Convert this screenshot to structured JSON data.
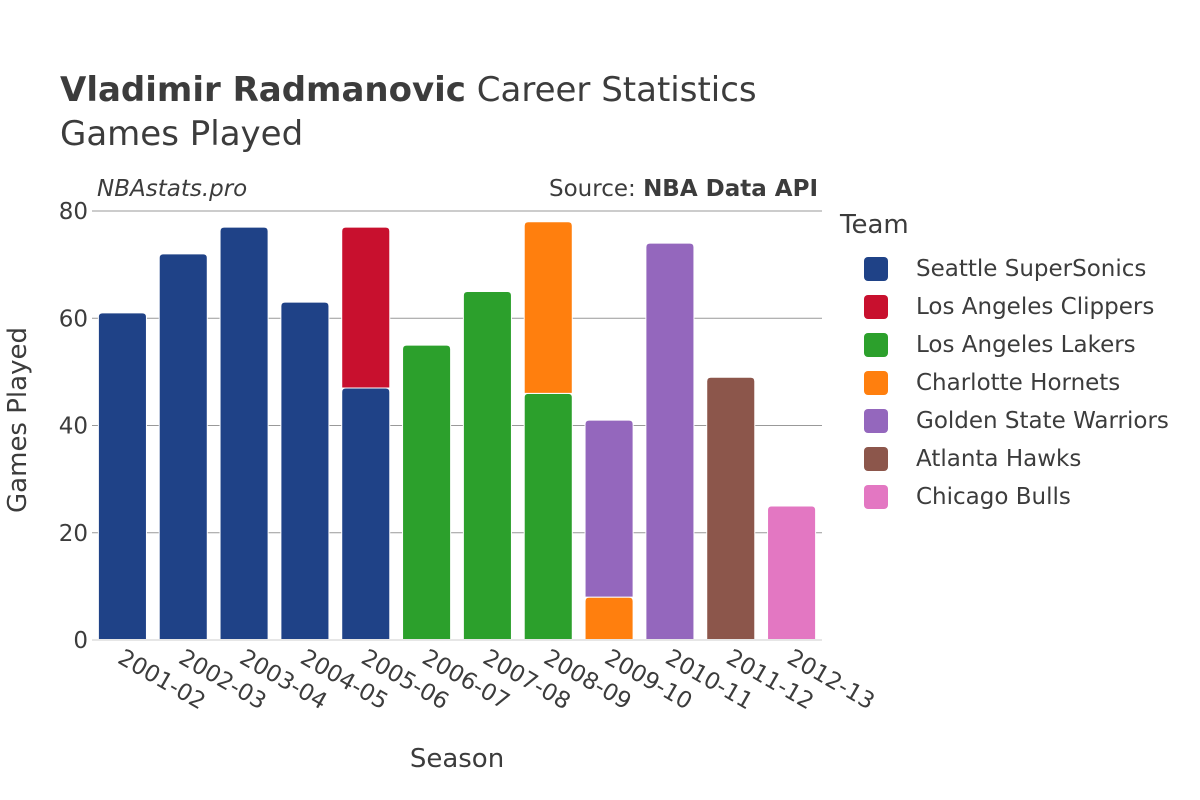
{
  "title": {
    "player": "Vladimir Radmanovic",
    "rest": "Career Statistics"
  },
  "subtitle": "Games Played",
  "watermark": "NBAstats.pro",
  "source": {
    "prefix": "Source: ",
    "name": "NBA Data API"
  },
  "legend_title": "Team",
  "chart_data": {
    "type": "bar",
    "stacked": true,
    "xlabel": "Season",
    "ylabel": "Games Played",
    "ylim": [
      0,
      80
    ],
    "yticks": [
      0,
      20,
      40,
      60,
      80
    ],
    "grid": true,
    "legend_position": "right",
    "categories": [
      "2001-02",
      "2002-03",
      "2003-04",
      "2004-05",
      "2005-06",
      "2006-07",
      "2007-08",
      "2008-09",
      "2009-10",
      "2010-11",
      "2011-12",
      "2012-13"
    ],
    "series": [
      {
        "name": "Seattle SuperSonics",
        "color": "#1f4287",
        "values": [
          61,
          72,
          77,
          63,
          47,
          0,
          0,
          0,
          0,
          0,
          0,
          0
        ]
      },
      {
        "name": "Los Angeles Clippers",
        "color": "#c8102e",
        "values": [
          0,
          0,
          0,
          0,
          30,
          0,
          0,
          0,
          0,
          0,
          0,
          0
        ]
      },
      {
        "name": "Los Angeles Lakers",
        "color": "#2ca02c",
        "values": [
          0,
          0,
          0,
          0,
          0,
          55,
          65,
          46,
          0,
          0,
          0,
          0
        ]
      },
      {
        "name": "Charlotte Hornets",
        "color": "#ff7f0e",
        "values": [
          0,
          0,
          0,
          0,
          0,
          0,
          0,
          32,
          8,
          0,
          0,
          0
        ]
      },
      {
        "name": "Golden State Warriors",
        "color": "#9467bd",
        "values": [
          0,
          0,
          0,
          0,
          0,
          0,
          0,
          0,
          33,
          74,
          0,
          0
        ]
      },
      {
        "name": "Atlanta Hawks",
        "color": "#8c564b",
        "values": [
          0,
          0,
          0,
          0,
          0,
          0,
          0,
          0,
          0,
          0,
          49,
          0
        ]
      },
      {
        "name": "Chicago Bulls",
        "color": "#e377c2",
        "values": [
          0,
          0,
          0,
          0,
          0,
          0,
          0,
          0,
          0,
          0,
          0,
          25
        ]
      }
    ]
  }
}
